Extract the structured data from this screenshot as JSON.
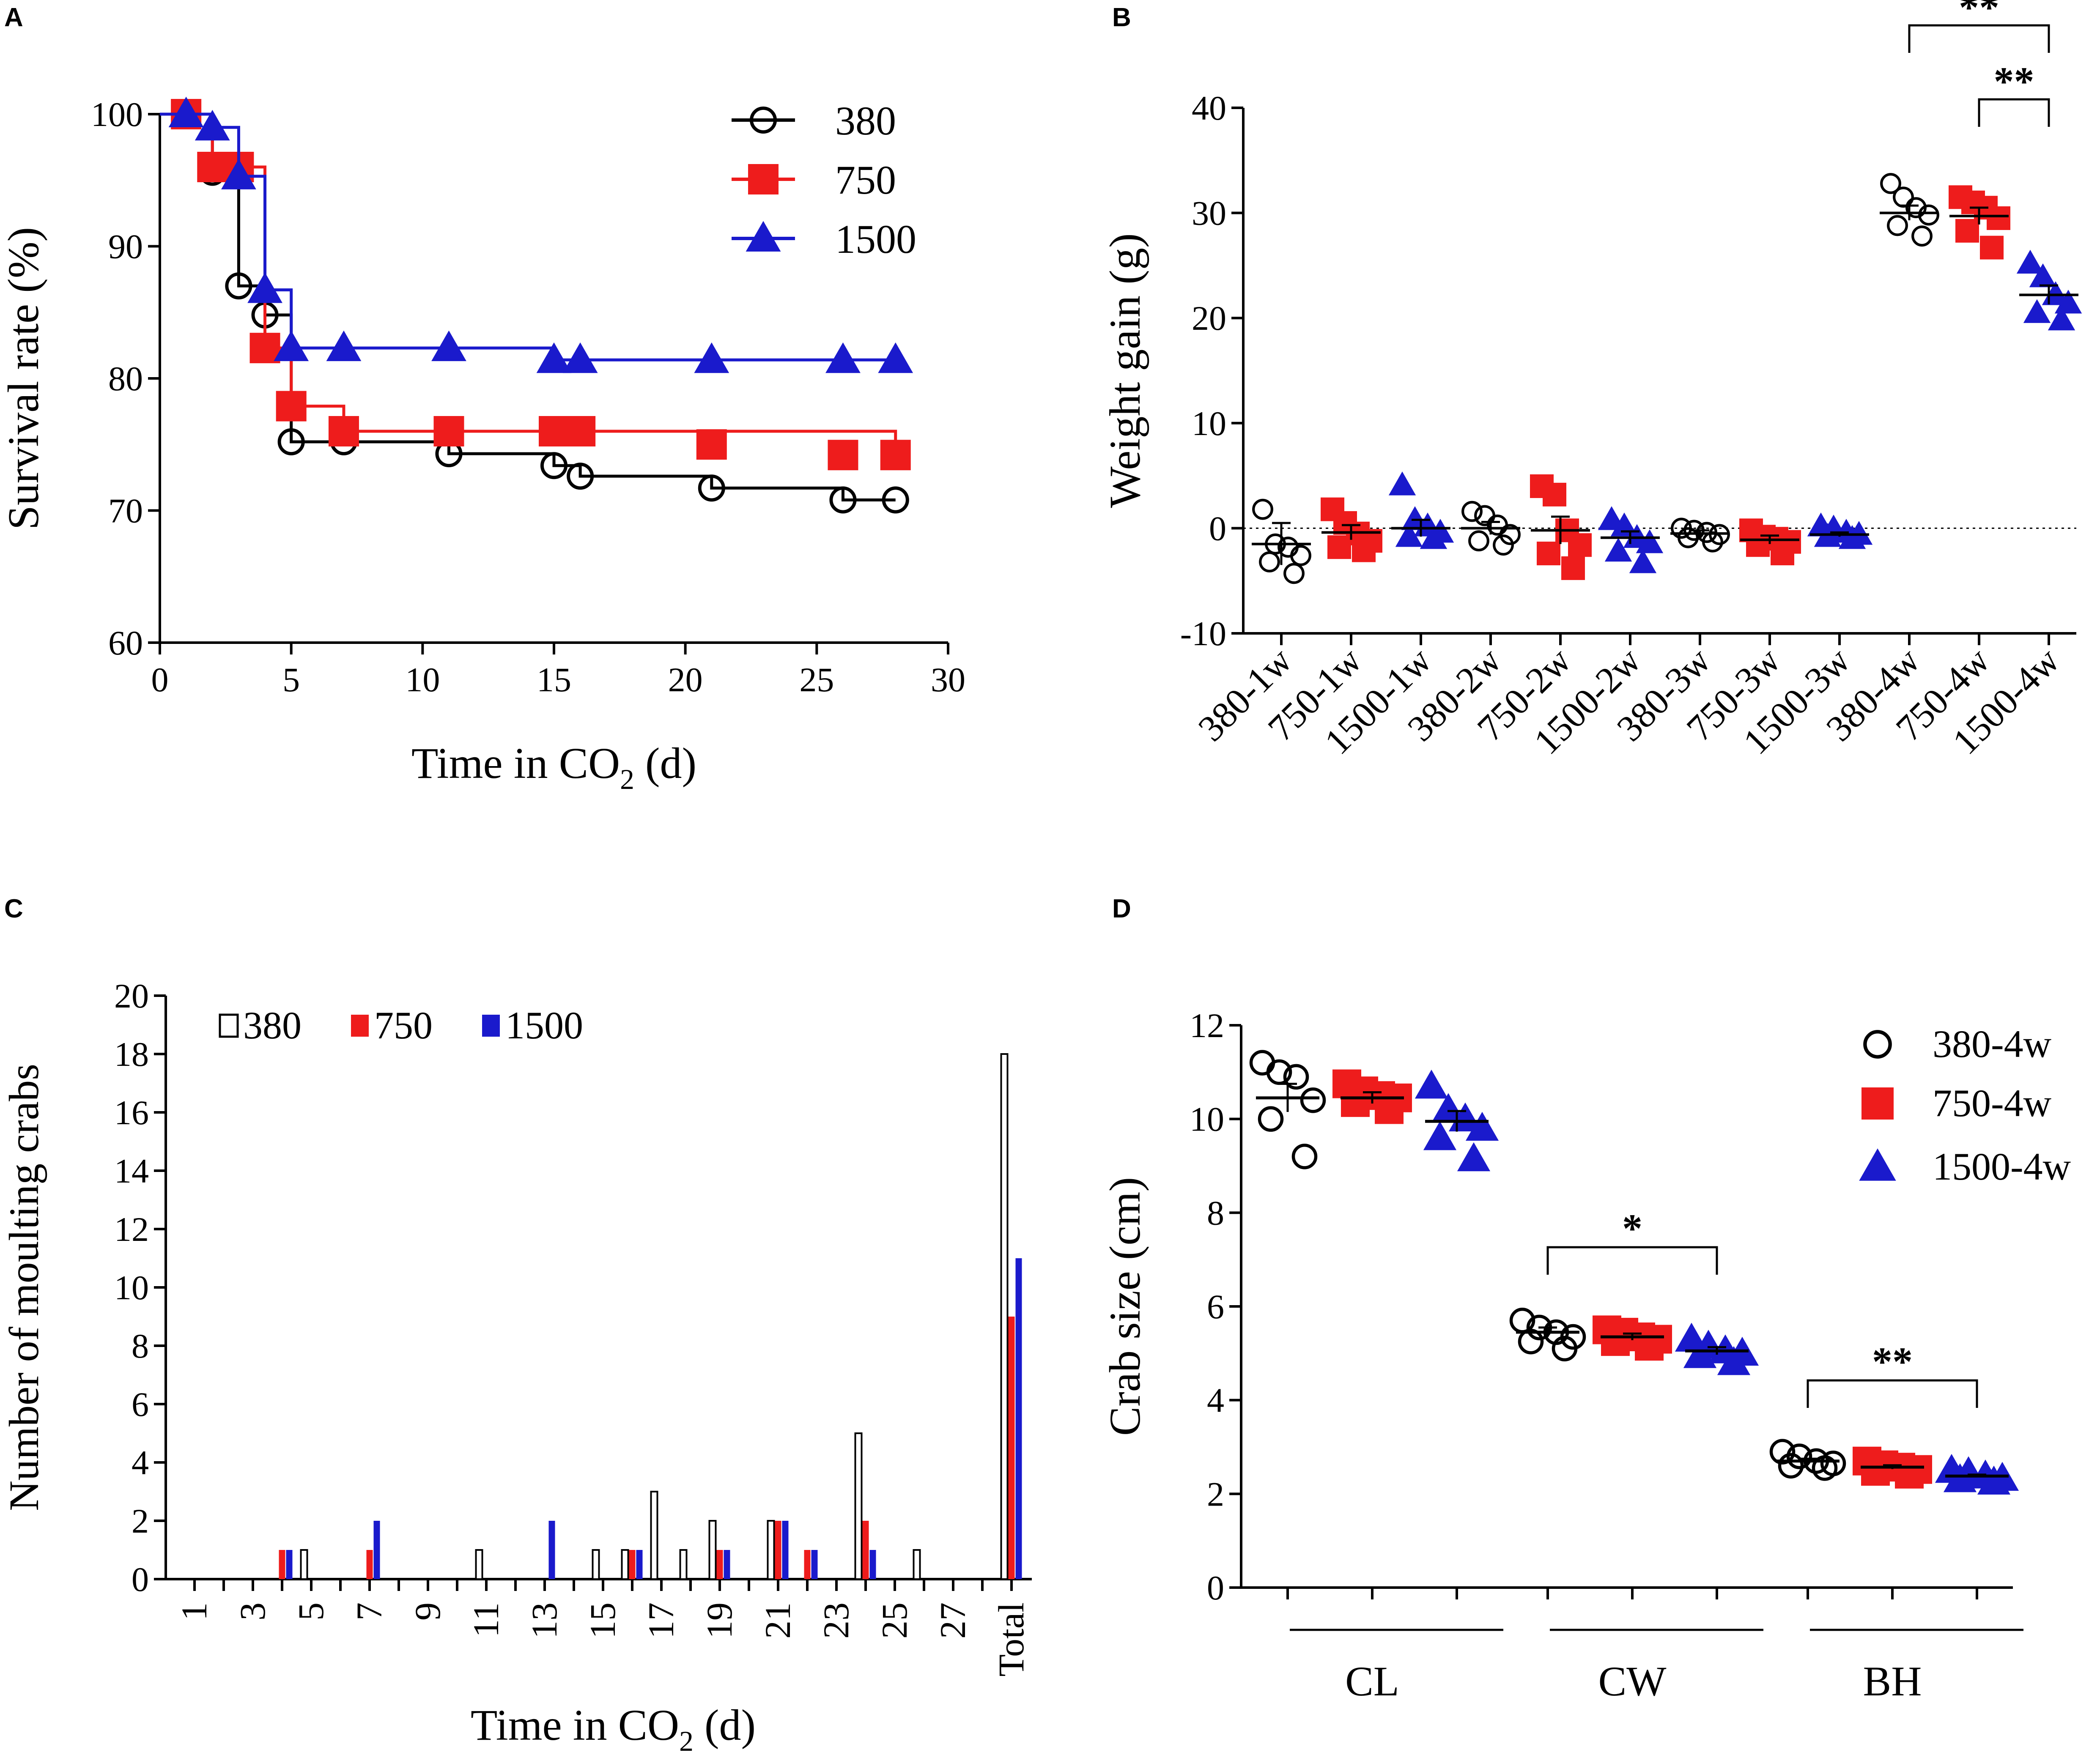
{
  "colors": {
    "c380": "#000000",
    "c750": "#ee1c1c",
    "c1500": "#1a1acc"
  },
  "panels": {
    "A": {
      "letter": "A"
    },
    "B": {
      "letter": "B"
    },
    "C": {
      "letter": "C"
    },
    "D": {
      "letter": "D"
    }
  },
  "chart_data": [
    {
      "panel": "A",
      "type": "line",
      "step": true,
      "title": "",
      "xlabel_main": "Time in CO",
      "xlabel_sub": "2",
      "xlabel_tail": " (d)",
      "ylabel": "Survival rate (%)",
      "xlim": [
        0,
        30
      ],
      "ylim": [
        60,
        100
      ],
      "xticks": [
        0,
        5,
        10,
        15,
        20,
        25,
        30
      ],
      "yticks": [
        60,
        70,
        80,
        90,
        100
      ],
      "legend": {
        "position": "top-right",
        "entries": [
          "380",
          "750",
          "1500"
        ]
      },
      "series": [
        {
          "name": "380",
          "marker": "open-circle",
          "steps": [
            [
              0,
              100
            ],
            [
              2,
              95.6
            ],
            [
              3,
              87
            ],
            [
              4,
              84.8
            ],
            [
              5,
              75.2
            ],
            [
              11,
              74.3
            ],
            [
              15,
              73.4
            ],
            [
              16,
              72.6
            ],
            [
              21,
              71.7
            ],
            [
              26,
              70.8
            ],
            [
              28,
              70.8
            ]
          ],
          "markers": [
            [
              1,
              100
            ],
            [
              2,
              95.6
            ],
            [
              3,
              87
            ],
            [
              4,
              84.8
            ],
            [
              5,
              75.2
            ],
            [
              7,
              75.2
            ],
            [
              11,
              74.3
            ],
            [
              15,
              73.4
            ],
            [
              16,
              72.6
            ],
            [
              21,
              71.7
            ],
            [
              26,
              70.8
            ],
            [
              28,
              70.8
            ]
          ]
        },
        {
          "name": "750",
          "marker": "filled-square",
          "steps": [
            [
              0,
              100
            ],
            [
              2,
              96
            ],
            [
              4,
              82.3
            ],
            [
              5,
              77.9
            ],
            [
              7,
              76
            ],
            [
              28,
              76
            ],
            [
              28,
              74.2
            ]
          ],
          "markers": [
            [
              1,
              100
            ],
            [
              2,
              96
            ],
            [
              3,
              96
            ],
            [
              4,
              82.3
            ],
            [
              5,
              77.9
            ],
            [
              7,
              76
            ],
            [
              11,
              76
            ],
            [
              15,
              76
            ],
            [
              16,
              76
            ],
            [
              21,
              75
            ],
            [
              26,
              74.2
            ],
            [
              28,
              74.2
            ]
          ]
        },
        {
          "name": "1500",
          "marker": "filled-triangle",
          "steps": [
            [
              0,
              100
            ],
            [
              2,
              99
            ],
            [
              3,
              95.3
            ],
            [
              4,
              86.7
            ],
            [
              5,
              82.3
            ],
            [
              15,
              81.4
            ],
            [
              28,
              81.4
            ]
          ],
          "markers": [
            [
              1,
              100
            ],
            [
              2,
              99
            ],
            [
              3,
              95.3
            ],
            [
              4,
              86.7
            ],
            [
              5,
              82.3
            ],
            [
              7,
              82.3
            ],
            [
              11,
              82.3
            ],
            [
              15,
              81.4
            ],
            [
              16,
              81.4
            ],
            [
              21,
              81.4
            ],
            [
              26,
              81.4
            ],
            [
              28,
              81.4
            ]
          ]
        }
      ]
    },
    {
      "panel": "B",
      "type": "scatter",
      "title": "",
      "xlabel": "",
      "ylabel": "Weight gain (g)",
      "ylim": [
        -10,
        40
      ],
      "yticks": [
        -10,
        0,
        10,
        20,
        30,
        40
      ],
      "categories": [
        "380-1w",
        "750-1w",
        "1500-1w",
        "380-2w",
        "750-2w",
        "1500-2w",
        "380-3w",
        "750-3w",
        "1500-3w",
        "380-4w",
        "750-4w",
        "1500-4w"
      ],
      "reference_line": 0,
      "groups": [
        {
          "series": "380",
          "mean": -1.5,
          "sem": 2.0,
          "points": [
            1.8,
            -1.5,
            -1.8,
            -2.6,
            -3.2,
            -4.3
          ]
        },
        {
          "series": "750",
          "mean": -0.4,
          "sem": 0.7,
          "points": [
            1.8,
            0.5,
            -0.5,
            -1.2,
            -1.8,
            -2.1
          ]
        },
        {
          "series": "1500",
          "mean": 0.0,
          "sem": 0.8,
          "points": [
            4.1,
            0.8,
            0.2,
            -0.4,
            -0.8,
            -1.0
          ]
        },
        {
          "series": "380",
          "mean": 0.0,
          "sem": 0.6,
          "points": [
            1.6,
            1.2,
            0.3,
            -0.6,
            -1.2,
            -1.6
          ]
        },
        {
          "series": "750",
          "mean": -0.2,
          "sem": 1.3,
          "points": [
            4.0,
            3.2,
            -0.2,
            -1.6,
            -2.4,
            -3.8
          ]
        },
        {
          "series": "1500",
          "mean": -0.9,
          "sem": 0.6,
          "points": [
            0.8,
            0.2,
            -0.9,
            -1.4,
            -2.2,
            -3.3
          ]
        },
        {
          "series": "380",
          "mean": -0.5,
          "sem": 0.3,
          "points": [
            0.0,
            -0.2,
            -0.4,
            -0.6,
            -0.9,
            -1.3
          ]
        },
        {
          "series": "750",
          "mean": -1.1,
          "sem": 0.4,
          "points": [
            -0.2,
            -0.8,
            -1.0,
            -1.3,
            -1.6,
            -2.4
          ]
        },
        {
          "series": "1500",
          "mean": -0.6,
          "sem": 0.2,
          "points": [
            0.2,
            0.0,
            -0.4,
            -0.6,
            -0.8,
            -1.0
          ]
        },
        {
          "series": "380",
          "mean": 30.0,
          "sem": 0.7,
          "points": [
            32.8,
            31.5,
            30.5,
            29.8,
            28.8,
            27.8
          ]
        },
        {
          "series": "750",
          "mean": 29.7,
          "sem": 0.8,
          "points": [
            31.5,
            31.0,
            30.5,
            29.5,
            28.3,
            26.7
          ]
        },
        {
          "series": "1500",
          "mean": 22.2,
          "sem": 0.9,
          "points": [
            25.2,
            23.9,
            22.2,
            21.4,
            20.5,
            19.8
          ]
        }
      ],
      "significance": [
        {
          "from": "380-4w",
          "to": "1500-4w",
          "label": "**"
        },
        {
          "from": "750-4w",
          "to": "1500-4w",
          "label": "**"
        }
      ]
    },
    {
      "panel": "C",
      "type": "bar",
      "title": "",
      "xlabel_main": "Time in CO",
      "xlabel_sub": "2",
      "xlabel_tail": " (d)",
      "ylabel": "Number of moulting crabs",
      "ylim": [
        0,
        20
      ],
      "yticks": [
        0,
        2,
        4,
        6,
        8,
        10,
        12,
        14,
        16,
        18,
        20
      ],
      "tick_labels": [
        "1",
        "3",
        "5",
        "7",
        "9",
        "11",
        "13",
        "15",
        "17",
        "19",
        "21",
        "23",
        "25",
        "27",
        "Total"
      ],
      "legend": {
        "position": "top-left",
        "entries": [
          "380",
          "750",
          "1500"
        ]
      },
      "categories": [
        "1",
        "2",
        "3",
        "4",
        "5",
        "6",
        "7",
        "8",
        "9",
        "10",
        "11",
        "12",
        "13",
        "14",
        "15",
        "16",
        "17",
        "18",
        "19",
        "20",
        "21",
        "22",
        "23",
        "24",
        "25",
        "26",
        "27",
        "28",
        "Total"
      ],
      "series": [
        {
          "name": "380",
          "values": [
            0,
            0,
            0,
            0,
            1,
            0,
            0,
            0,
            0,
            0,
            1,
            0,
            0,
            0,
            1,
            1,
            3,
            1,
            2,
            0,
            2,
            0,
            0,
            5,
            0,
            1,
            0,
            0,
            18
          ]
        },
        {
          "name": "750",
          "values": [
            0,
            0,
            0,
            1,
            0,
            0,
            1,
            0,
            0,
            0,
            0,
            0,
            0,
            0,
            0,
            1,
            0,
            0,
            1,
            0,
            2,
            1,
            0,
            2,
            0,
            0,
            0,
            0,
            9
          ]
        },
        {
          "name": "1500",
          "values": [
            0,
            0,
            0,
            1,
            0,
            0,
            2,
            0,
            0,
            0,
            0,
            0,
            2,
            0,
            0,
            1,
            0,
            0,
            1,
            0,
            2,
            1,
            0,
            1,
            0,
            0,
            0,
            0,
            11
          ]
        }
      ]
    },
    {
      "panel": "D",
      "type": "scatter",
      "title": "",
      "xlabel": "",
      "ylabel": "Crab size (cm)",
      "ylim": [
        0,
        12
      ],
      "yticks": [
        0,
        2,
        4,
        6,
        8,
        10,
        12
      ],
      "group_labels": [
        "CL",
        "CW",
        "BH"
      ],
      "legend": {
        "position": "top-right",
        "entries": [
          "380-4w",
          "750-4w",
          "1500-4w"
        ]
      },
      "groups": [
        {
          "group": "CL",
          "series": "380-4w",
          "mean": 10.45,
          "sem": 0.3,
          "points": [
            11.2,
            11.0,
            10.9,
            10.4,
            10.0,
            9.2
          ]
        },
        {
          "group": "CL",
          "series": "750-4w",
          "mean": 10.45,
          "sem": 0.12,
          "points": [
            10.75,
            10.6,
            10.5,
            10.45,
            10.35,
            10.2
          ]
        },
        {
          "group": "CL",
          "series": "1500-4w",
          "mean": 9.95,
          "sem": 0.22,
          "points": [
            10.7,
            10.2,
            10.0,
            9.8,
            9.6,
            9.15
          ]
        },
        {
          "group": "CW",
          "series": "380-4w",
          "mean": 5.45,
          "sem": 0.1,
          "points": [
            5.7,
            5.55,
            5.45,
            5.35,
            5.25,
            5.1
          ]
        },
        {
          "group": "CW",
          "series": "750-4w",
          "mean": 5.35,
          "sem": 0.07,
          "points": [
            5.5,
            5.45,
            5.35,
            5.3,
            5.25,
            5.15
          ]
        },
        {
          "group": "CW",
          "series": "1500-4w",
          "mean": 5.05,
          "sem": 0.08,
          "points": [
            5.3,
            5.15,
            5.05,
            5.0,
            4.95,
            4.8
          ]
        },
        {
          "group": "BH",
          "series": "380-4w",
          "mean": 2.7,
          "sem": 0.05,
          "points": [
            2.9,
            2.8,
            2.7,
            2.65,
            2.6,
            2.55
          ]
        },
        {
          "group": "BH",
          "series": "750-4w",
          "mean": 2.57,
          "sem": 0.04,
          "points": [
            2.7,
            2.62,
            2.57,
            2.52,
            2.48,
            2.42
          ]
        },
        {
          "group": "BH",
          "series": "1500-4w",
          "mean": 2.38,
          "sem": 0.03,
          "points": [
            2.5,
            2.45,
            2.38,
            2.33,
            2.3,
            2.25
          ]
        }
      ],
      "significance": [
        {
          "group": "CW",
          "from": "380-4w",
          "to": "1500-4w",
          "label": "*"
        },
        {
          "group": "BH",
          "from": "380-4w",
          "to": "1500-4w",
          "label": "**"
        }
      ]
    }
  ]
}
